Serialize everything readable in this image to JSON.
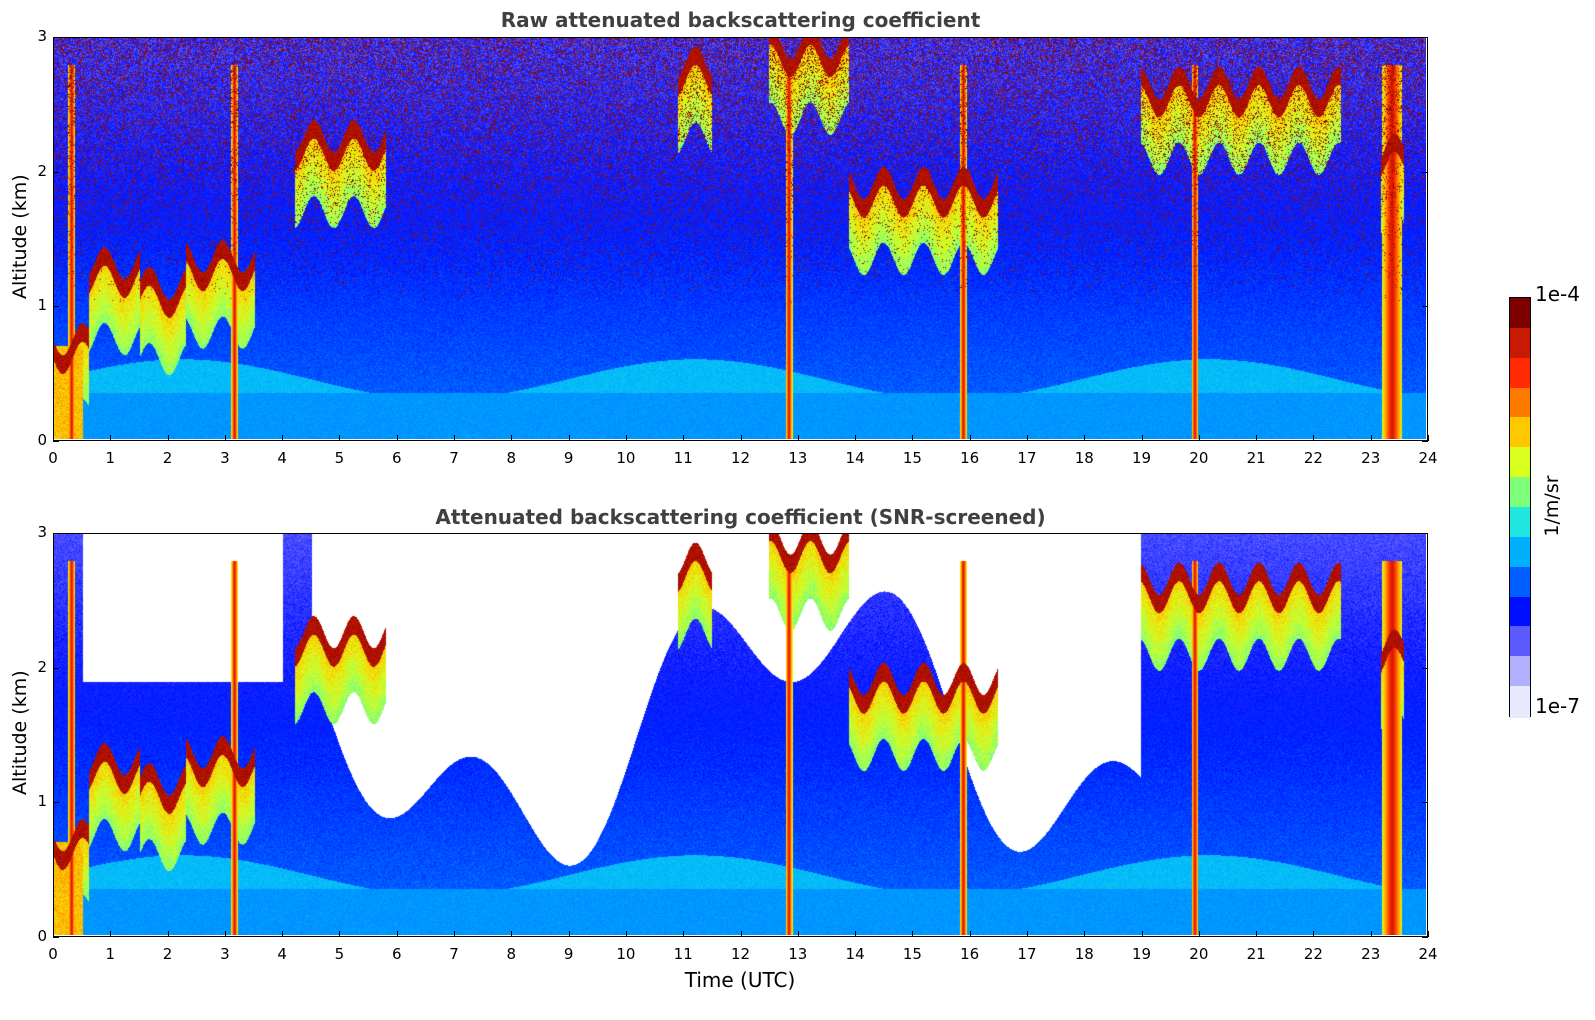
{
  "chart_data": [
    {
      "type": "heatmap",
      "title": "Raw attenuated backscattering coefficient",
      "xlabel": "",
      "ylabel": "Altitude (km)",
      "xlim": [
        0,
        24
      ],
      "ylim": [
        0,
        3
      ],
      "xticks": [
        "0",
        "1",
        "2",
        "3",
        "4",
        "5",
        "6",
        "7",
        "8",
        "9",
        "10",
        "11",
        "12",
        "13",
        "14",
        "15",
        "16",
        "17",
        "18",
        "19",
        "20",
        "21",
        "22",
        "23",
        "24"
      ],
      "yticks": [
        "0",
        "1",
        "2",
        "3"
      ],
      "screened": false,
      "cloud_layers": [
        {
          "t0": 0.0,
          "t1": 0.6,
          "alt": 0.68
        },
        {
          "t0": 0.6,
          "t1": 1.5,
          "alt": 1.25
        },
        {
          "t0": 1.5,
          "t1": 2.3,
          "alt": 1.1
        },
        {
          "t0": 2.3,
          "t1": 3.5,
          "alt": 1.3
        },
        {
          "t0": 4.2,
          "t1": 5.8,
          "alt": 2.2
        },
        {
          "t0": 10.9,
          "t1": 11.5,
          "alt": 2.75
        },
        {
          "t0": 12.5,
          "t1": 13.9,
          "alt": 2.9
        },
        {
          "t0": 13.9,
          "t1": 16.5,
          "alt": 1.85
        },
        {
          "t0": 19.0,
          "t1": 22.5,
          "alt": 2.6
        },
        {
          "t0": 23.2,
          "t1": 23.6,
          "alt": 2.1
        }
      ],
      "precip_columns": [
        0.3,
        3.15,
        12.85,
        15.9,
        19.95,
        23.4
      ]
    },
    {
      "type": "heatmap",
      "title": "Attenuated backscattering coefficient (SNR-screened)",
      "xlabel": "Time (UTC)",
      "ylabel": "Altitude (km)",
      "xlim": [
        0,
        24
      ],
      "ylim": [
        0,
        3
      ],
      "xticks": [
        "0",
        "1",
        "2",
        "3",
        "4",
        "5",
        "6",
        "7",
        "8",
        "9",
        "10",
        "11",
        "12",
        "13",
        "14",
        "15",
        "16",
        "17",
        "18",
        "19",
        "20",
        "21",
        "22",
        "23",
        "24"
      ],
      "yticks": [
        "0",
        "1",
        "2",
        "3"
      ],
      "screened": true,
      "cloud_layers": [
        {
          "t0": 0.0,
          "t1": 0.6,
          "alt": 0.68
        },
        {
          "t0": 0.6,
          "t1": 1.5,
          "alt": 1.25
        },
        {
          "t0": 1.5,
          "t1": 2.3,
          "alt": 1.1
        },
        {
          "t0": 2.3,
          "t1": 3.5,
          "alt": 1.3
        },
        {
          "t0": 4.2,
          "t1": 5.8,
          "alt": 2.2
        },
        {
          "t0": 10.9,
          "t1": 11.5,
          "alt": 2.75
        },
        {
          "t0": 12.5,
          "t1": 13.9,
          "alt": 2.9
        },
        {
          "t0": 13.9,
          "t1": 16.5,
          "alt": 1.85
        },
        {
          "t0": 19.0,
          "t1": 22.5,
          "alt": 2.6
        },
        {
          "t0": 23.2,
          "t1": 23.6,
          "alt": 2.1
        }
      ],
      "precip_columns": [
        0.3,
        3.15,
        12.85,
        15.9,
        19.95,
        23.4
      ]
    }
  ],
  "colorbar": {
    "max_label": "1e-4",
    "min_label": "1e-7",
    "unit": "1/m/sr",
    "colors": [
      "#7f0000",
      "#c81a00",
      "#ff2a00",
      "#ff7a00",
      "#ffc800",
      "#d8ff1e",
      "#7eff7a",
      "#1ee6e0",
      "#00b0ff",
      "#0060ff",
      "#0010ff",
      "#5a5aff",
      "#b0b0ff",
      "#e8e8ff"
    ]
  }
}
